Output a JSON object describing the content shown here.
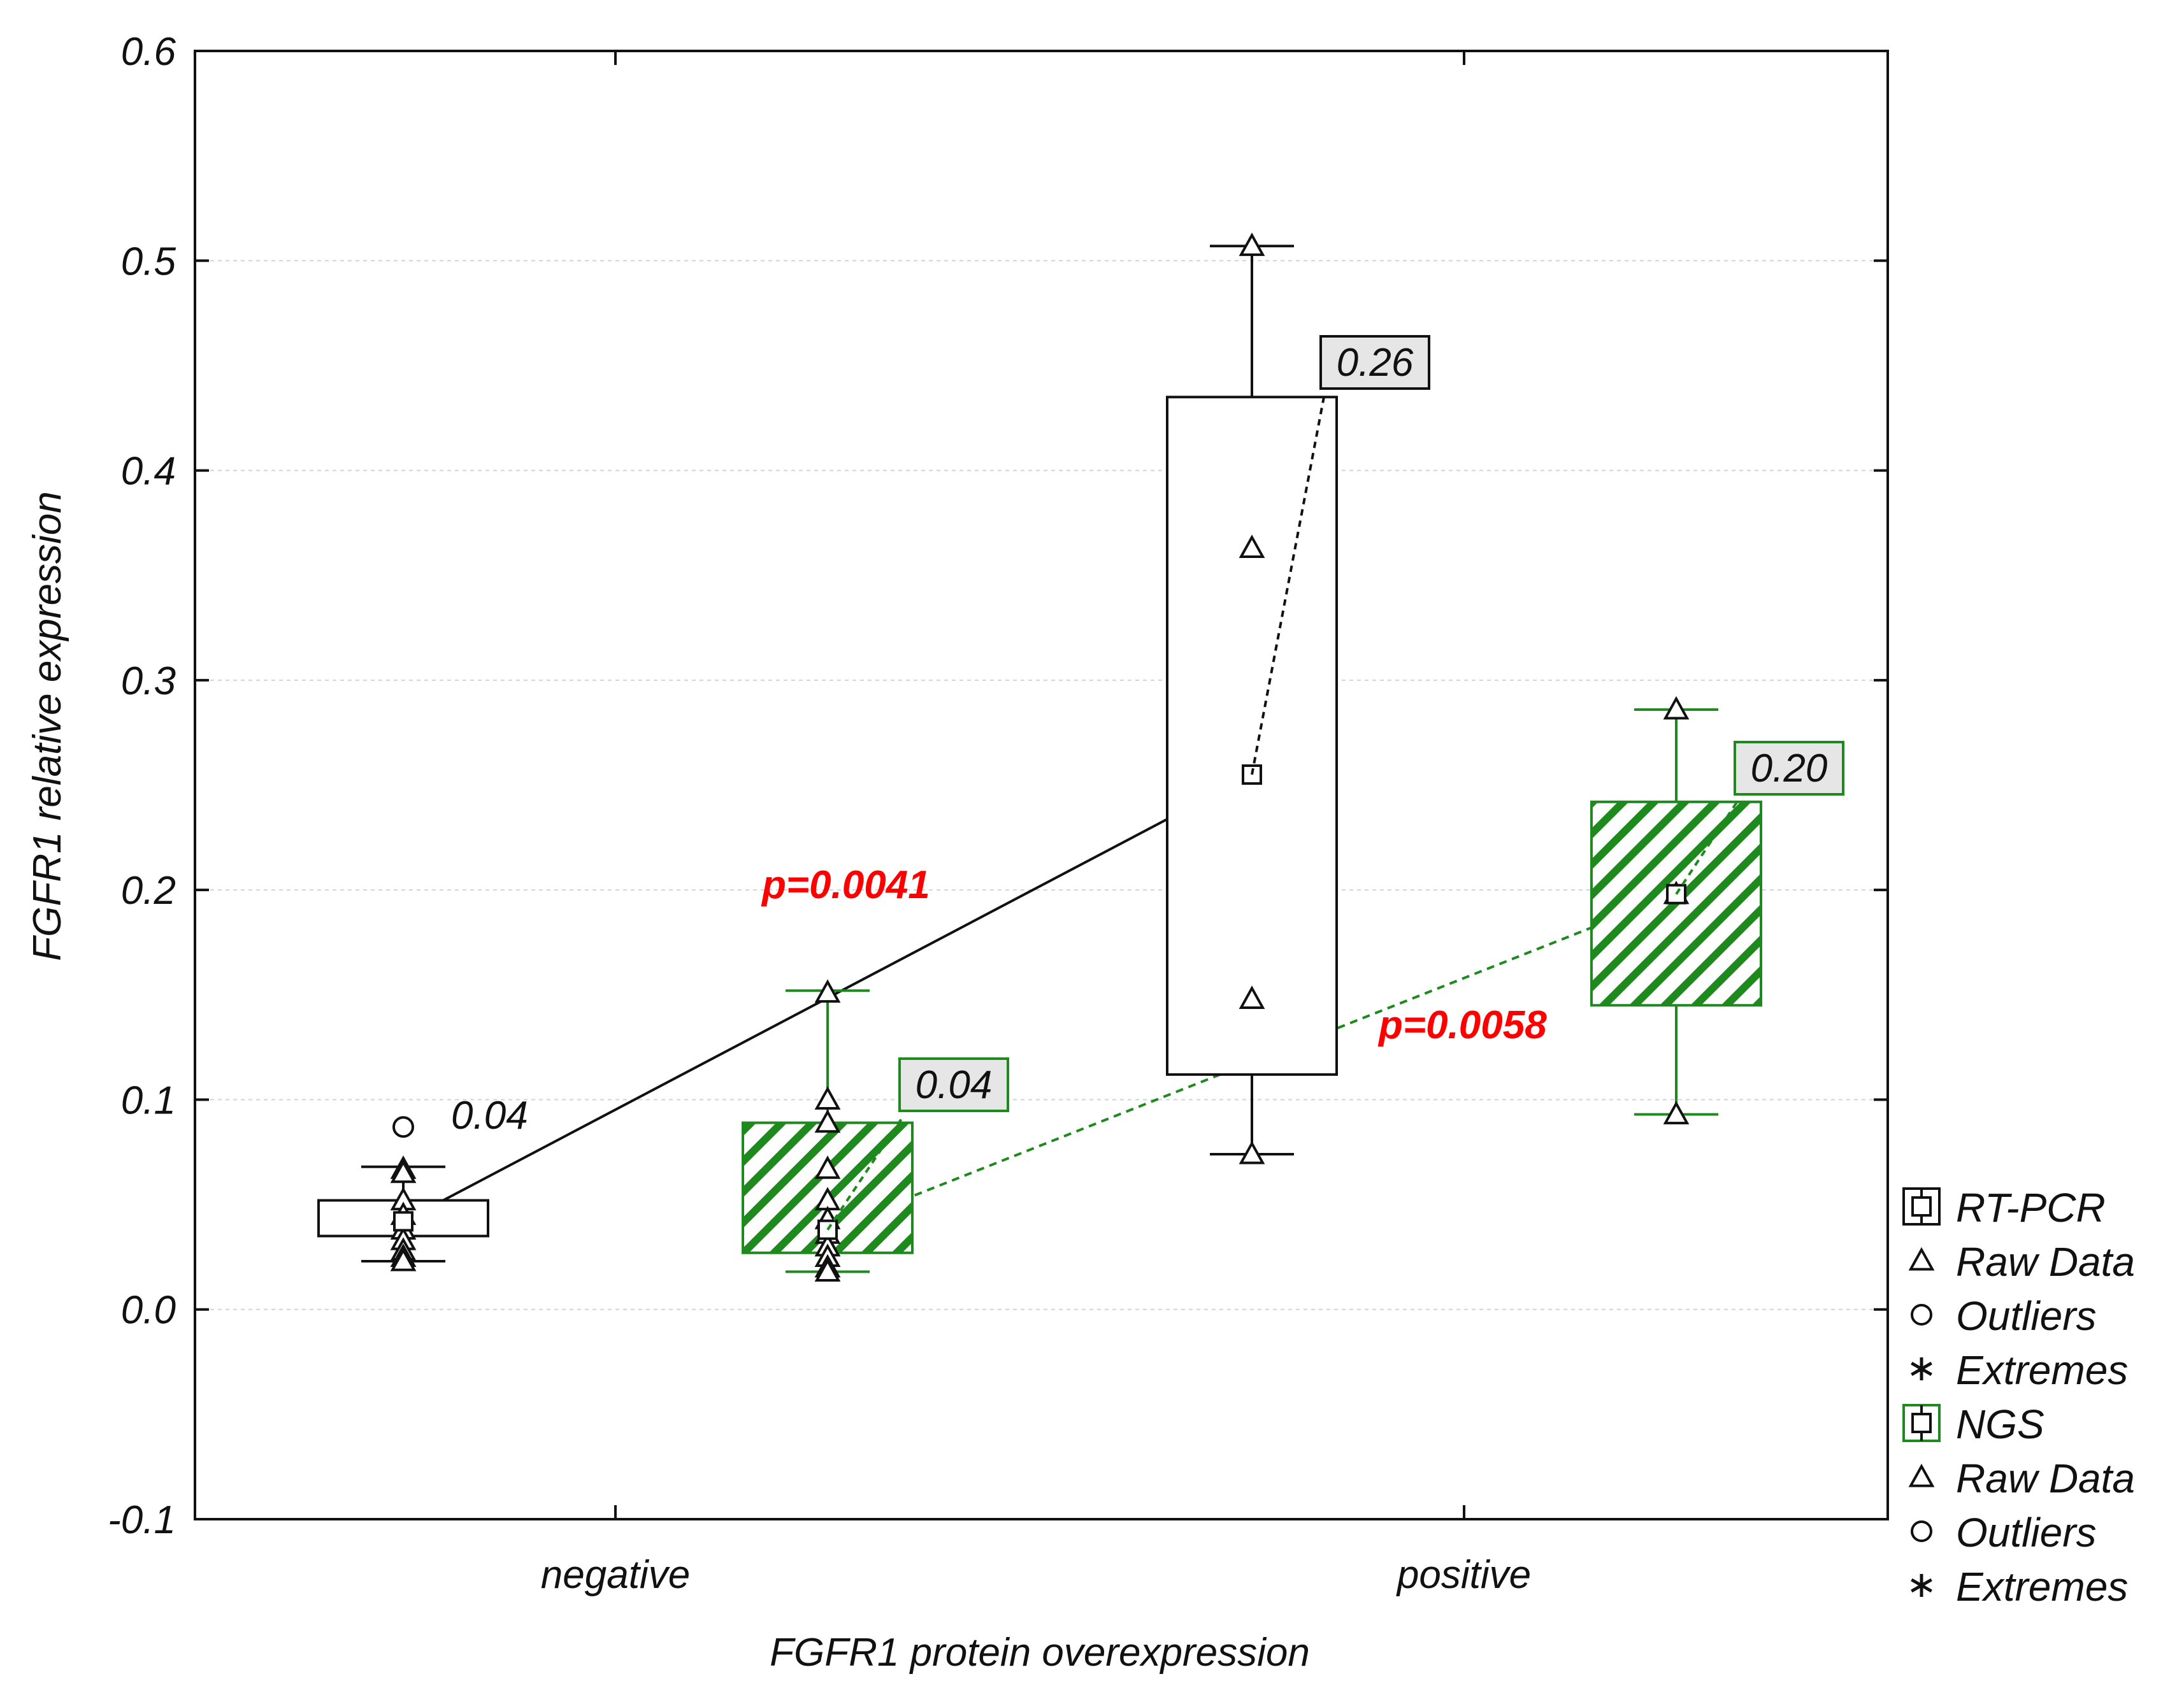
{
  "chart_data": {
    "type": "box",
    "xlabel": "FGFR1 protein overexpression",
    "ylabel": "FGFR1 relative expression",
    "ylim": [
      -0.1,
      0.6
    ],
    "yticks": [
      "-0.1",
      "0.0",
      "0.1",
      "0.2",
      "0.3",
      "0.4",
      "0.5",
      "0.6"
    ],
    "categories": [
      "negative",
      "positive"
    ],
    "grid": "horizontal, light dotted",
    "colors": {
      "rtpcr": "#111111",
      "ngs": "#1e8a1e",
      "pvalue": "#ff0000",
      "label_bg": "#e6e6e6"
    },
    "series": [
      {
        "name": "RT-PCR",
        "boxes": [
          {
            "category": "negative",
            "median": 0.042,
            "q1": 0.035,
            "q3": 0.052,
            "whisker_low": 0.023,
            "whisker_high": 0.068,
            "raw": [
              0.067,
              0.065,
              0.052,
              0.045,
              0.038,
              0.033,
              0.028,
              0.025,
              0.023
            ],
            "outliers": [
              0.087
            ]
          },
          {
            "category": "positive",
            "median": 0.255,
            "q1": 0.112,
            "q3": 0.435,
            "whisker_low": 0.074,
            "whisker_high": 0.507,
            "raw": [
              0.507,
              0.363,
              0.148,
              0.074
            ],
            "outliers": []
          }
        ]
      },
      {
        "name": "NGS",
        "boxes": [
          {
            "category": "negative",
            "median": 0.038,
            "q1": 0.027,
            "q3": 0.089,
            "whisker_low": 0.018,
            "whisker_high": 0.152,
            "raw": [
              0.151,
              0.1,
              0.089,
              0.067,
              0.052,
              0.043,
              0.036,
              0.03,
              0.025,
              0.02,
              0.018
            ],
            "outliers": []
          },
          {
            "category": "positive",
            "median": 0.198,
            "q1": 0.145,
            "q3": 0.242,
            "whisker_low": 0.093,
            "whisker_high": 0.286,
            "raw": [
              0.286,
              0.198,
              0.093
            ],
            "outliers": []
          }
        ]
      }
    ],
    "annotations": [
      {
        "series": "RT-PCR",
        "category": "negative",
        "text": "0.04"
      },
      {
        "series": "RT-PCR",
        "category": "positive",
        "text": "0.26"
      },
      {
        "series": "NGS",
        "category": "negative",
        "text": "0.04"
      },
      {
        "series": "NGS",
        "category": "positive",
        "text": "0.20"
      }
    ],
    "pvalues": [
      {
        "series": "RT-PCR",
        "text": "p=0.0041"
      },
      {
        "series": "NGS",
        "text": "p=0.0058"
      }
    ],
    "legend": {
      "placement": "right-bottom",
      "items": [
        {
          "label": "RT-PCR",
          "symbol": "box-square",
          "color": "#111111"
        },
        {
          "label": "Raw Data",
          "symbol": "triangle",
          "color": "#111111"
        },
        {
          "label": "Outliers",
          "symbol": "circle",
          "color": "#111111"
        },
        {
          "label": "Extremes",
          "symbol": "asterisk",
          "color": "#111111"
        },
        {
          "label": "NGS",
          "symbol": "box-square",
          "color": "#1e8a1e"
        },
        {
          "label": "Raw Data",
          "symbol": "triangle",
          "color": "#111111"
        },
        {
          "label": "Outliers",
          "symbol": "circle",
          "color": "#111111"
        },
        {
          "label": "Extremes",
          "symbol": "asterisk",
          "color": "#111111"
        }
      ]
    }
  }
}
